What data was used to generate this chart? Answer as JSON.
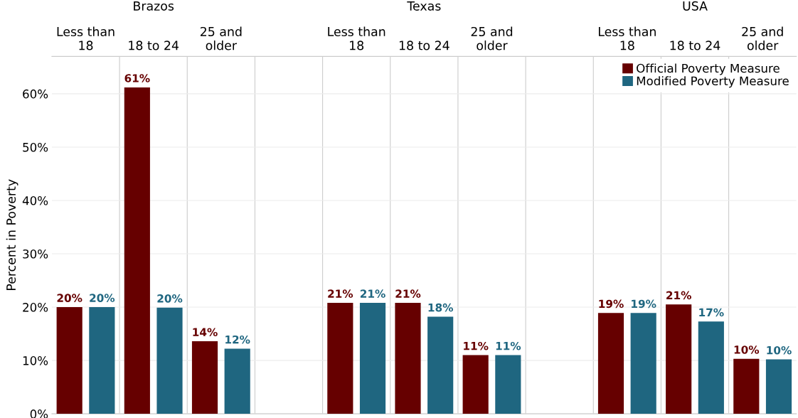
{
  "chart_data": {
    "type": "bar",
    "ylabel": "Percent in Poverty",
    "categories": [
      "Less than\n18",
      "18 to 24",
      "25 and\nolder",
      null,
      "Less than\n18",
      "18 to 24",
      "25 and\nolder",
      null,
      "Less than\n18",
      "18 to 24",
      "25 and\nolder"
    ],
    "annotations": [
      "Brazos",
      "Texas",
      "USA"
    ],
    "ylim": [
      0,
      67
    ],
    "yticks": [
      {
        "value": 0,
        "label": "0%"
      },
      {
        "value": 10,
        "label": "10%"
      },
      {
        "value": 20,
        "label": "20%"
      },
      {
        "value": 30,
        "label": "30%"
      },
      {
        "value": 40,
        "label": "40%"
      },
      {
        "value": 50,
        "label": "50%"
      },
      {
        "value": 60,
        "label": "60%"
      }
    ],
    "grid": "y",
    "legend": "top right",
    "series": [
      {
        "name": "Official Poverty Measure",
        "color": "#660000",
        "values": [
          20.0,
          61.2,
          13.6,
          null,
          20.8,
          20.8,
          11.0,
          null,
          18.9,
          20.5,
          10.3
        ],
        "value_labels": [
          "20%",
          "61%",
          "14%",
          null,
          "21%",
          "21%",
          "11%",
          null,
          "19%",
          "21%",
          "10%"
        ]
      },
      {
        "name": "Modified Poverty Measure",
        "color": "#1f6680",
        "values": [
          20.0,
          19.9,
          12.2,
          null,
          20.8,
          18.2,
          11.0,
          null,
          18.9,
          17.3,
          10.2
        ],
        "value_labels": [
          "20%",
          "20%",
          "12%",
          null,
          "21%",
          "18%",
          "11%",
          null,
          "19%",
          "17%",
          "10%"
        ]
      }
    ]
  }
}
